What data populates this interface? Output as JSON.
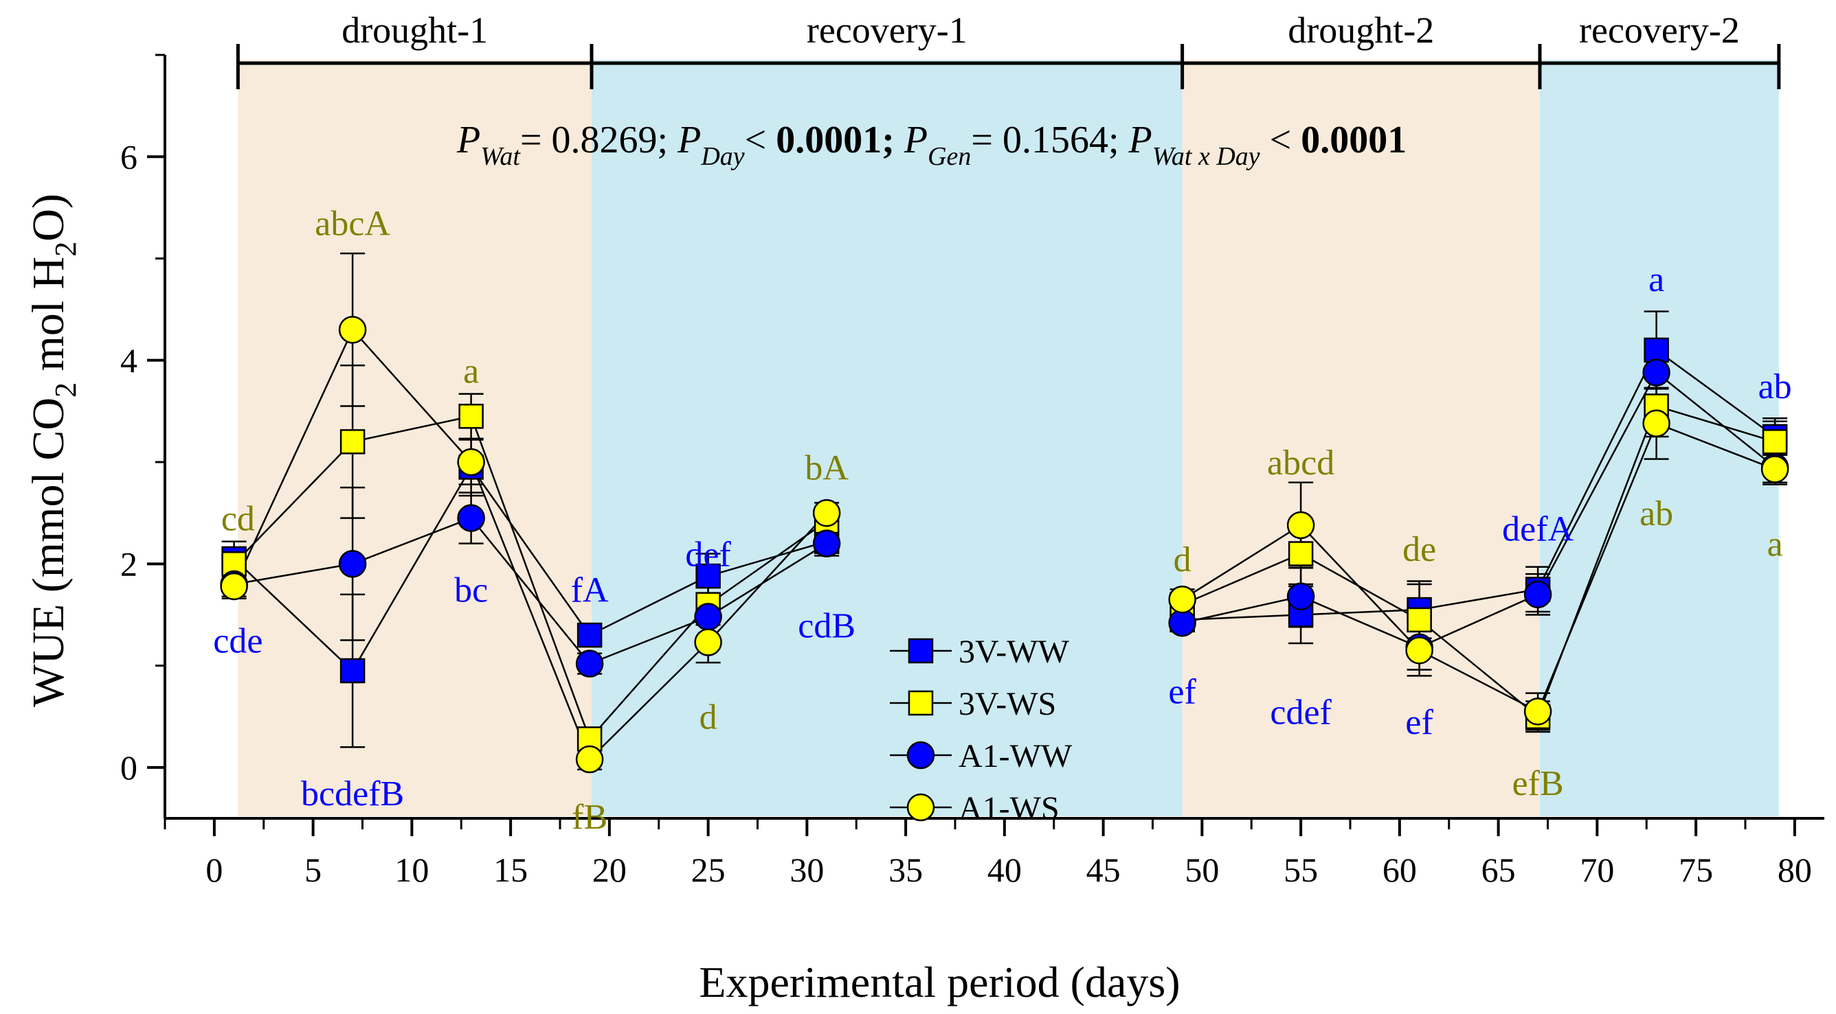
{
  "chart_data": {
    "type": "line",
    "xlabel": "Experimental period (days)",
    "ylabel": {
      "parts": [
        "WUE (mmol CO",
        "2",
        " mol H",
        "2",
        "O)"
      ]
    },
    "xlim": [
      -2.5,
      81.5
    ],
    "ylim": [
      -0.5,
      7.0
    ],
    "xticks": [
      0,
      5,
      10,
      15,
      20,
      25,
      30,
      35,
      40,
      45,
      50,
      55,
      60,
      65,
      70,
      75,
      80
    ],
    "yticks": [
      0,
      2,
      4,
      6
    ],
    "colors": {
      "drought_bg": "#f8ebdb",
      "recovery_bg": "#cceaf2",
      "blue": "#0000ff",
      "yellow": "#ffff00",
      "label_blue": "#0000ff",
      "label_olive": "#808000",
      "line": "#000000"
    },
    "periods": [
      {
        "name": "drought-1",
        "kind": "drought",
        "start": 1.2,
        "end": 19.1
      },
      {
        "name": "recovery-1",
        "kind": "recovery",
        "start": 19.1,
        "end": 49.0
      },
      {
        "name": "drought-2",
        "kind": "drought",
        "start": 49.0,
        "end": 67.1
      },
      {
        "name": "recovery-2",
        "kind": "recovery",
        "start": 67.1,
        "end": 79.2
      }
    ],
    "stats": {
      "segments": [
        {
          "text": "P",
          "italic": true
        },
        {
          "text": "Wat",
          "italic": true,
          "sub": true
        },
        {
          "text": "= 0.8269; "
        },
        {
          "text": "P",
          "italic": true
        },
        {
          "text": "Day",
          "italic": true,
          "sub": true
        },
        {
          "text": "< "
        },
        {
          "text": "0.0001;",
          "bold": true
        },
        {
          "text": " "
        },
        {
          "text": "P",
          "italic": true
        },
        {
          "text": "Gen",
          "italic": true,
          "sub": true
        },
        {
          "text": "= 0.1564; "
        },
        {
          "text": "P",
          "italic": true
        },
        {
          "text": "Wat x Day",
          "italic": true,
          "sub": true
        },
        {
          "text": " < "
        },
        {
          "text": "0.0001",
          "bold": true
        }
      ]
    },
    "series": [
      {
        "name": "3V-WW",
        "marker": "square",
        "fill": "#0000ff",
        "points": [
          {
            "x": 1,
            "y": 2.05,
            "err": 0.17
          },
          {
            "x": 7,
            "y": 0.95,
            "err": 0.75
          },
          {
            "x": 13,
            "y": 2.95,
            "err": 0.28
          },
          {
            "x": 19,
            "y": 1.3,
            "err": 0.1
          },
          {
            "x": 25,
            "y": 1.88,
            "err": 0.22
          },
          {
            "x": 31,
            "y": 2.22,
            "err": 0.1
          },
          {
            "x": 49,
            "y": 1.45,
            "err": 0.1
          },
          {
            "x": 55,
            "y": 1.5,
            "err": 0.28
          },
          {
            "x": 61,
            "y": 1.55,
            "err": 0.28
          },
          {
            "x": 67,
            "y": 1.75,
            "err": 0.22
          },
          {
            "x": 73,
            "y": 4.1,
            "err": 0.38
          },
          {
            "x": 79,
            "y": 3.25,
            "err": 0.18
          }
        ]
      },
      {
        "name": "3V-WS",
        "marker": "square",
        "fill": "#ffff00",
        "points": [
          {
            "x": 1,
            "y": 2.0,
            "err": 0.15
          },
          {
            "x": 7,
            "y": 3.2,
            "err": 0.75
          },
          {
            "x": 13,
            "y": 3.45,
            "err": 0.22
          },
          {
            "x": 19,
            "y": 0.28,
            "err": 0.1
          },
          {
            "x": 25,
            "y": 1.6,
            "err": 0.2
          },
          {
            "x": 31,
            "y": 2.42,
            "err": 0.12
          },
          {
            "x": 49,
            "y": 1.6,
            "err": 0.1
          },
          {
            "x": 55,
            "y": 2.1,
            "err": 0.3
          },
          {
            "x": 61,
            "y": 1.45,
            "err": 0.35
          },
          {
            "x": 67,
            "y": 0.5,
            "err": 0.15
          },
          {
            "x": 73,
            "y": 3.55,
            "err": 0.3
          },
          {
            "x": 79,
            "y": 3.2,
            "err": 0.2
          }
        ]
      },
      {
        "name": "A1-WW",
        "marker": "circle",
        "fill": "#0000ff",
        "points": [
          {
            "x": 1,
            "y": 1.8,
            "err": 0.12
          },
          {
            "x": 7,
            "y": 2.0,
            "err": 0.75
          },
          {
            "x": 13,
            "y": 2.45,
            "err": 0.25
          },
          {
            "x": 19,
            "y": 1.02,
            "err": 0.1
          },
          {
            "x": 25,
            "y": 1.48,
            "err": 0.2
          },
          {
            "x": 31,
            "y": 2.2,
            "err": 0.12
          },
          {
            "x": 49,
            "y": 1.42,
            "err": 0.08
          },
          {
            "x": 55,
            "y": 1.68,
            "err": 0.3
          },
          {
            "x": 61,
            "y": 1.18,
            "err": 0.22
          },
          {
            "x": 67,
            "y": 1.7,
            "err": 0.2
          },
          {
            "x": 73,
            "y": 3.88,
            "err": 0.3
          },
          {
            "x": 79,
            "y": 2.95,
            "err": 0.15
          }
        ]
      },
      {
        "name": "A1-WS",
        "marker": "circle",
        "fill": "#ffff00",
        "points": [
          {
            "x": 1,
            "y": 1.78,
            "err": 0.12
          },
          {
            "x": 7,
            "y": 4.3,
            "err": 0.75
          },
          {
            "x": 13,
            "y": 3.0,
            "err": 0.22
          },
          {
            "x": 19,
            "y": 0.08,
            "err": 0.1
          },
          {
            "x": 25,
            "y": 1.23,
            "err": 0.2
          },
          {
            "x": 31,
            "y": 2.5,
            "err": 0.1
          },
          {
            "x": 49,
            "y": 1.65,
            "err": 0.1
          },
          {
            "x": 55,
            "y": 2.38,
            "err": 0.42
          },
          {
            "x": 61,
            "y": 1.15,
            "err": 0.25
          },
          {
            "x": 67,
            "y": 0.55,
            "err": 0.18
          },
          {
            "x": 73,
            "y": 3.38,
            "err": 0.35
          },
          {
            "x": 79,
            "y": 2.93,
            "err": 0.15
          }
        ]
      }
    ],
    "annotations": [
      {
        "text": "cd",
        "x": 1.2,
        "y": 2.45,
        "color": "olive"
      },
      {
        "text": "cde",
        "x": 1.2,
        "y": 1.25,
        "color": "blue"
      },
      {
        "text": "abcA",
        "x": 7,
        "y": 5.35,
        "color": "olive"
      },
      {
        "text": "bcdefB",
        "x": 7,
        "y": -0.25,
        "color": "blue"
      },
      {
        "text": "a",
        "x": 13,
        "y": 3.9,
        "color": "olive"
      },
      {
        "text": "bc",
        "x": 13,
        "y": 1.75,
        "color": "blue"
      },
      {
        "text": "fA",
        "x": 19,
        "y": 1.75,
        "color": "blue"
      },
      {
        "text": "fB",
        "x": 19,
        "y": -0.48,
        "color": "olive"
      },
      {
        "text": "def",
        "x": 25,
        "y": 2.1,
        "color": "blue"
      },
      {
        "text": "d",
        "x": 25,
        "y": 0.5,
        "color": "olive"
      },
      {
        "text": "bA",
        "x": 31,
        "y": 2.95,
        "color": "olive"
      },
      {
        "text": "cdB",
        "x": 31,
        "y": 1.4,
        "color": "blue"
      },
      {
        "text": "d",
        "x": 49,
        "y": 2.05,
        "color": "olive"
      },
      {
        "text": "ef",
        "x": 49,
        "y": 0.75,
        "color": "blue"
      },
      {
        "text": "abcd",
        "x": 55,
        "y": 3.0,
        "color": "olive"
      },
      {
        "text": "cdef",
        "x": 55,
        "y": 0.55,
        "color": "blue"
      },
      {
        "text": "de",
        "x": 61,
        "y": 2.15,
        "color": "olive"
      },
      {
        "text": "ef",
        "x": 61,
        "y": 0.45,
        "color": "blue"
      },
      {
        "text": "defA",
        "x": 67,
        "y": 2.35,
        "color": "blue"
      },
      {
        "text": "efB",
        "x": 67,
        "y": -0.15,
        "color": "olive"
      },
      {
        "text": "a",
        "x": 73,
        "y": 4.8,
        "color": "blue"
      },
      {
        "text": "ab",
        "x": 73,
        "y": 2.5,
        "color": "olive"
      },
      {
        "text": "ab",
        "x": 79,
        "y": 3.75,
        "color": "blue"
      },
      {
        "text": "a",
        "x": 79,
        "y": 2.2,
        "color": "olive"
      }
    ],
    "legend": {
      "placement": "bottom-center",
      "items": [
        "3V-WW",
        "3V-WS",
        "A1-WW",
        "A1-WS"
      ]
    }
  }
}
